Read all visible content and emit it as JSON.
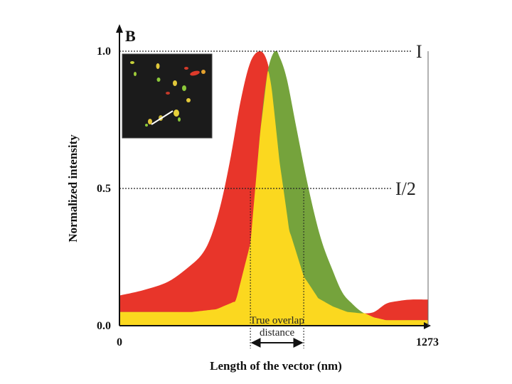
{
  "chart_data": {
    "type": "area",
    "panel_label": "B",
    "xlabel": "Length of the vector (nm)",
    "ylabel": "Normalized intensity",
    "xlim": [
      0,
      1273
    ],
    "ylim": [
      0.0,
      1.0
    ],
    "x_ticks": [
      "0",
      "1273"
    ],
    "y_ticks": [
      "0.0",
      "0.5",
      "1.0"
    ],
    "reference_lines": [
      {
        "label": "I",
        "y": 1.0
      },
      {
        "label": "I/2",
        "y": 0.5
      }
    ],
    "annotation": {
      "line1": "True overlap",
      "line2": "distance",
      "x_start": 540,
      "x_end": 760
    },
    "colors": {
      "red": "#e8352a",
      "green": "#75a33c",
      "yellow": "#fbd81f"
    },
    "series": [
      {
        "color": "red",
        "x": [
          0,
          100,
          200,
          280,
          340,
          380,
          420,
          460,
          500,
          540,
          580,
          610,
          630,
          660,
          700,
          760,
          820,
          880,
          940,
          1000,
          1050,
          1100,
          1150,
          1200,
          1273
        ],
        "y": [
          0.11,
          0.13,
          0.16,
          0.21,
          0.26,
          0.33,
          0.45,
          0.62,
          0.82,
          0.96,
          1.0,
          0.96,
          0.85,
          0.6,
          0.35,
          0.18,
          0.1,
          0.07,
          0.05,
          0.045,
          0.05,
          0.08,
          0.09,
          0.095,
          0.095
        ]
      },
      {
        "color": "green",
        "x": [
          0,
          100,
          200,
          300,
          400,
          480,
          540,
          580,
          610,
          640,
          660,
          690,
          730,
          780,
          830,
          880,
          920,
          960,
          1000,
          1050,
          1100,
          1200,
          1273
        ],
        "y": [
          0.05,
          0.05,
          0.05,
          0.05,
          0.06,
          0.09,
          0.3,
          0.7,
          0.92,
          1.0,
          0.98,
          0.9,
          0.72,
          0.5,
          0.32,
          0.2,
          0.12,
          0.08,
          0.05,
          0.03,
          0.02,
          0.02,
          0.02
        ]
      }
    ],
    "grid": false
  }
}
